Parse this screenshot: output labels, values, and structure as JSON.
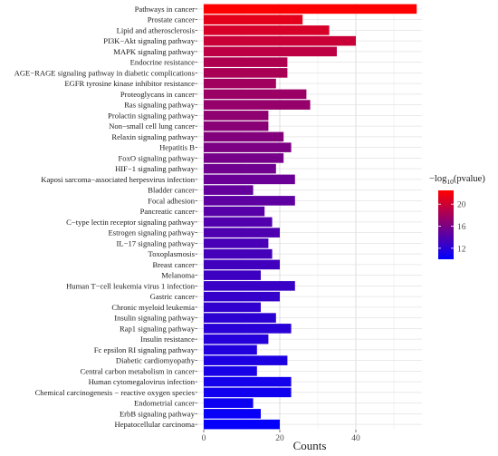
{
  "chart_data": {
    "type": "bar",
    "orientation": "horizontal",
    "categories": [
      "Pathways in cancer",
      "Prostate cancer",
      "Lipid and atherosclerosis",
      "PI3K−Akt signaling pathway",
      "MAPK signaling pathway",
      "Endocrine resistance",
      "AGE−RAGE signaling pathway in diabetic complications",
      "EGFR tyrosine kinase inhibitor resistance",
      "Proteoglycans in cancer",
      "Ras signaling pathway",
      "Prolactin signaling pathway",
      "Non−small cell lung cancer",
      "Relaxin signaling pathway",
      "Hepatitis B",
      "FoxO signaling pathway",
      "HIF−1 signaling pathway",
      "Kaposi sarcoma−associated herpesvirus infection",
      "Bladder cancer",
      "Focal adhesion",
      "Pancreatic cancer",
      "C−type lectin receptor signaling pathway",
      "Estrogen signaling pathway",
      "IL−17 signaling pathway",
      "Toxoplasmosis",
      "Breast cancer",
      "Melanoma",
      "Human T−cell leukemia virus 1 infection",
      "Gastric cancer",
      "Chronic myeloid leukemia",
      "Insulin signaling pathway",
      "Rap1 signaling pathway",
      "Insulin resistance",
      "Fc epsilon RI signaling pathway",
      "Diabetic cardiomyopathy",
      "Central carbon metabolism in cancer",
      "Human cytomegalovirus infection",
      "Chemical carcinogenesis − reactive oxygen species",
      "Endometrial cancer",
      "ErbB signaling pathway",
      "Hepatocellular carcinoma"
    ],
    "values": [
      56,
      26,
      33,
      40,
      35,
      22,
      22,
      19,
      27,
      28,
      17,
      17,
      21,
      23,
      21,
      19,
      24,
      13,
      24,
      16,
      18,
      20,
      17,
      18,
      20,
      15,
      24,
      20,
      15,
      19,
      23,
      17,
      14,
      22,
      14,
      23,
      23,
      13,
      15,
      20
    ],
    "neglog10_pvalue": [
      22.5,
      21.2,
      20.5,
      19.8,
      19.2,
      18.6,
      18.3,
      17.9,
      17.6,
      17.3,
      17.0,
      16.7,
      16.4,
      16.1,
      15.8,
      15.5,
      15.2,
      14.9,
      14.6,
      14.3,
      14.0,
      13.8,
      13.6,
      13.4,
      13.2,
      13.0,
      12.8,
      12.6,
      12.4,
      12.2,
      12.0,
      11.8,
      11.6,
      11.4,
      11.2,
      11.0,
      10.8,
      10.6,
      10.4,
      10.2
    ],
    "xlabel": "Counts",
    "xlim": [
      0,
      58
    ],
    "xticks": [
      0,
      20,
      40
    ],
    "legend": {
      "title_prefix": "−log",
      "title_sub": "10",
      "title_suffix": "(pvalue)",
      "ticks": [
        20,
        16,
        12
      ],
      "range": [
        10,
        22.5
      ],
      "color_high": "#FF0000",
      "color_low": "#0000FF",
      "placement": "right"
    },
    "grid": true
  }
}
